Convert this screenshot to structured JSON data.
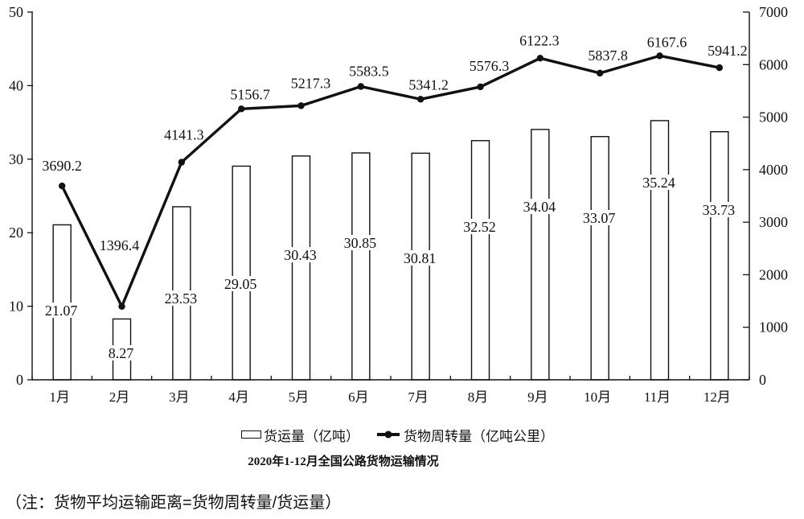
{
  "note": "（注：货物平均运输距离=货物周转量/货运量）",
  "chart_data": {
    "type": "combo",
    "title": "2020年1-12月全国公路货物运输情况",
    "categories": [
      "1月",
      "2月",
      "3月",
      "4月",
      "5月",
      "6月",
      "7月",
      "8月",
      "9月",
      "10月",
      "11月",
      "12月"
    ],
    "series": [
      {
        "name": "货运量（亿吨）",
        "type": "bar",
        "axis": "left",
        "values": [
          21.07,
          8.27,
          23.53,
          29.05,
          30.43,
          30.85,
          30.81,
          32.52,
          34.04,
          33.07,
          35.24,
          33.73
        ]
      },
      {
        "name": "货物周转量（亿吨公里）",
        "type": "line",
        "axis": "right",
        "values": [
          3690.2,
          1396.4,
          4141.3,
          5156.7,
          5217.3,
          5583.5,
          5341.2,
          5576.3,
          6122.3,
          5837.8,
          6167.6,
          5941.2
        ]
      }
    ],
    "left_axis": {
      "min": 0,
      "max": 50,
      "ticks": [
        0,
        10,
        20,
        30,
        40,
        50
      ]
    },
    "right_axis": {
      "min": 0,
      "max": 7000,
      "ticks": [
        0,
        1000,
        2000,
        3000,
        4000,
        5000,
        6000,
        7000
      ]
    },
    "grid": false,
    "legend_position": "bottom",
    "colors": {
      "bar_fill": "#ffffff",
      "bar_stroke": "#111111",
      "line": "#111111",
      "text": "#111111",
      "background": "#ffffff"
    },
    "layout": {
      "bar_label_y": [
        386,
        439,
        371,
        353,
        317,
        302,
        321,
        282,
        257,
        271,
        227,
        261
      ],
      "line_label_dx": [
        0,
        -3,
        3,
        11,
        12,
        10,
        10,
        11,
        -1,
        10,
        9,
        10
      ],
      "line_label_dy": [
        -25,
        -76,
        -34,
        -18,
        -28,
        -19,
        -18,
        -26,
        -22,
        -22,
        -17,
        -21
      ]
    }
  }
}
